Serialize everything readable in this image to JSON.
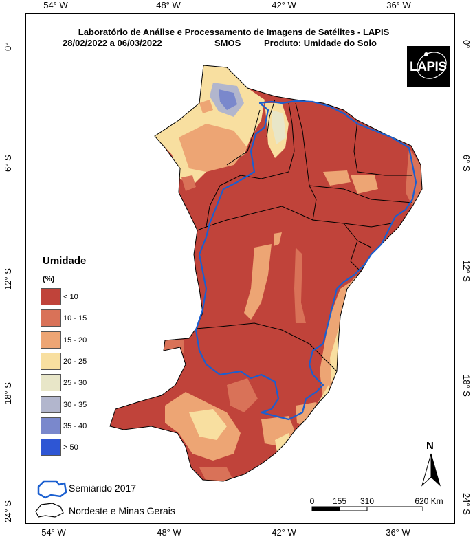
{
  "title": {
    "line1": "Laboratório de Análise e Processamento de Imagens de Satélites - LAPIS",
    "date_range": "28/02/2022  a  06/03/2022",
    "sensor": "SMOS",
    "product": "Produto: Umidade do Solo"
  },
  "logo": {
    "text": "LAPIS"
  },
  "axes": {
    "top": [
      "54° W",
      "48° W",
      "42° W",
      "36° W"
    ],
    "bottom": [
      "54° W",
      "48° W",
      "42° W",
      "36° W"
    ],
    "left": [
      "0°",
      "6° S",
      "12° S",
      "18° S",
      "24° S"
    ],
    "right": [
      "0°",
      "6° S",
      "12° S",
      "18° S",
      "24° S"
    ]
  },
  "legend": {
    "title": "Umidade",
    "unit": "(%)",
    "classes": [
      {
        "label": "< 10",
        "color": "#c0433a"
      },
      {
        "label": "10 - 15",
        "color": "#d97258"
      },
      {
        "label": "15 - 20",
        "color": "#eda574"
      },
      {
        "label": "20 - 25",
        "color": "#f8dfa0"
      },
      {
        "label": "25 - 30",
        "color": "#e8e6c8"
      },
      {
        "label": "30 - 35",
        "color": "#b2b6cd"
      },
      {
        "label": "35 - 40",
        "color": "#7a88cc"
      },
      {
        "label": "> 50",
        "color": "#2e56d4"
      }
    ]
  },
  "boundary_legend": {
    "semiarid": "Semiárido 2017",
    "region": "Nordeste e Minas Gerais"
  },
  "scale_bar": {
    "labels": [
      "0",
      "155",
      "310",
      "620 Km"
    ]
  },
  "north_arrow": {
    "label": "N"
  },
  "colors": {
    "semiarid_outline": "#1a5fd0",
    "state_borders": "#000000"
  }
}
